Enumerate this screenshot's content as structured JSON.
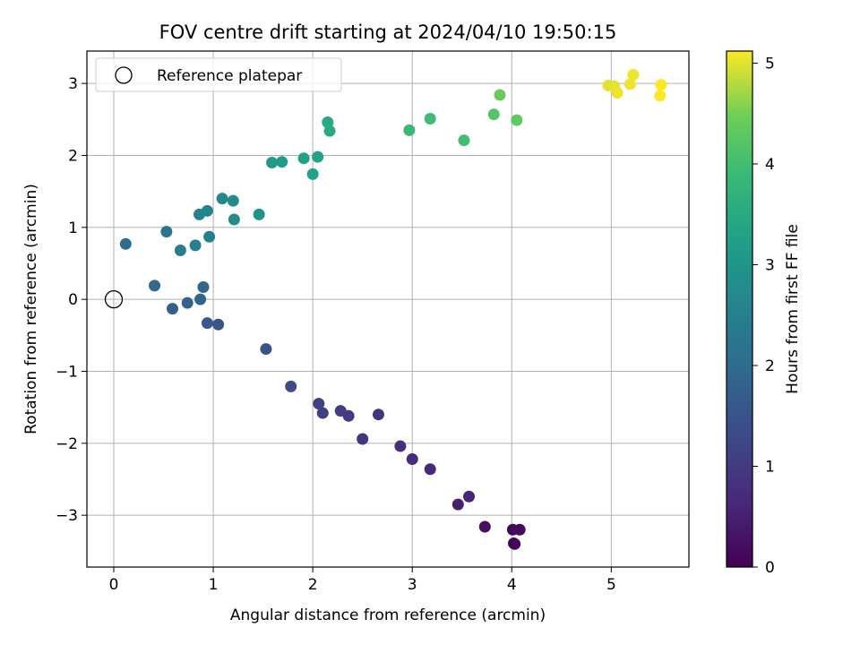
{
  "chart_data": {
    "type": "scatter",
    "title": "FOV centre drift starting at 2024/04/10 19:50:15",
    "xlabel": "Angular distance from reference (arcmin)",
    "ylabel": "Rotation from reference (arcmin)",
    "xlim": [
      -0.27,
      5.78
    ],
    "ylim": [
      -3.72,
      3.45
    ],
    "x_ticks": [
      0,
      1,
      2,
      3,
      4,
      5
    ],
    "y_ticks": [
      -3,
      -2,
      -1,
      0,
      1,
      2,
      3
    ],
    "x_tick_labels": [
      "0",
      "1",
      "2",
      "3",
      "4",
      "5"
    ],
    "y_tick_labels": [
      "−3",
      "−2",
      "−1",
      "0",
      "1",
      "2",
      "3"
    ],
    "grid": true,
    "legend": {
      "position": "top-left",
      "label": "Reference platepar"
    },
    "reference_point": {
      "x": 0,
      "y": 0
    },
    "colormap": "viridis",
    "colorbar": {
      "label": "Hours from first FF file",
      "range": [
        0,
        5.12
      ],
      "ticks": [
        0,
        1,
        2,
        3,
        4,
        5
      ],
      "tick_labels": [
        "0",
        "1",
        "2",
        "3",
        "4",
        "5"
      ]
    },
    "points": [
      {
        "x": 4.02,
        "y": -3.39,
        "c": 0.0
      },
      {
        "x": 4.03,
        "y": -3.4,
        "c": 0.05
      },
      {
        "x": 4.01,
        "y": -3.2,
        "c": 0.1
      },
      {
        "x": 4.08,
        "y": -3.2,
        "c": 0.15
      },
      {
        "x": 3.73,
        "y": -3.16,
        "c": 0.25
      },
      {
        "x": 3.46,
        "y": -2.85,
        "c": 0.5
      },
      {
        "x": 3.57,
        "y": -2.74,
        "c": 0.6
      },
      {
        "x": 3.18,
        "y": -2.36,
        "c": 0.7
      },
      {
        "x": 3.0,
        "y": -2.22,
        "c": 0.75
      },
      {
        "x": 2.88,
        "y": -2.04,
        "c": 0.8
      },
      {
        "x": 2.5,
        "y": -1.94,
        "c": 0.9
      },
      {
        "x": 2.66,
        "y": -1.6,
        "c": 0.95
      },
      {
        "x": 2.36,
        "y": -1.62,
        "c": 1.0
      },
      {
        "x": 2.28,
        "y": -1.55,
        "c": 1.05
      },
      {
        "x": 2.1,
        "y": -1.58,
        "c": 1.1
      },
      {
        "x": 2.06,
        "y": -1.45,
        "c": 1.15
      },
      {
        "x": 1.78,
        "y": -1.21,
        "c": 1.3
      },
      {
        "x": 1.53,
        "y": -0.69,
        "c": 1.45
      },
      {
        "x": 1.05,
        "y": -0.35,
        "c": 1.55
      },
      {
        "x": 0.94,
        "y": -0.33,
        "c": 1.6
      },
      {
        "x": 0.59,
        "y": -0.13,
        "c": 1.75
      },
      {
        "x": 0.74,
        "y": -0.05,
        "c": 1.8
      },
      {
        "x": 0.87,
        "y": 0.0,
        "c": 1.85
      },
      {
        "x": 0.9,
        "y": 0.17,
        "c": 1.9
      },
      {
        "x": 0.41,
        "y": 0.19,
        "c": 1.95
      },
      {
        "x": 0.12,
        "y": 0.77,
        "c": 2.05
      },
      {
        "x": 0.53,
        "y": 0.94,
        "c": 2.25
      },
      {
        "x": 0.67,
        "y": 0.68,
        "c": 2.4
      },
      {
        "x": 0.82,
        "y": 0.75,
        "c": 2.45
      },
      {
        "x": 0.96,
        "y": 0.87,
        "c": 2.5
      },
      {
        "x": 0.86,
        "y": 1.18,
        "c": 2.55
      },
      {
        "x": 0.94,
        "y": 1.23,
        "c": 2.6
      },
      {
        "x": 1.09,
        "y": 1.4,
        "c": 2.7
      },
      {
        "x": 1.2,
        "y": 1.37,
        "c": 2.75
      },
      {
        "x": 1.21,
        "y": 1.11,
        "c": 2.8
      },
      {
        "x": 1.46,
        "y": 1.18,
        "c": 2.95
      },
      {
        "x": 1.59,
        "y": 1.9,
        "c": 3.1
      },
      {
        "x": 1.69,
        "y": 1.91,
        "c": 3.15
      },
      {
        "x": 1.91,
        "y": 1.96,
        "c": 3.25
      },
      {
        "x": 2.0,
        "y": 1.74,
        "c": 3.3
      },
      {
        "x": 2.05,
        "y": 1.98,
        "c": 3.35
      },
      {
        "x": 2.15,
        "y": 2.46,
        "c": 3.45
      },
      {
        "x": 2.17,
        "y": 2.34,
        "c": 3.5
      },
      {
        "x": 2.97,
        "y": 2.35,
        "c": 3.9
      },
      {
        "x": 3.18,
        "y": 2.51,
        "c": 3.95
      },
      {
        "x": 3.52,
        "y": 2.21,
        "c": 4.0
      },
      {
        "x": 3.82,
        "y": 2.57,
        "c": 4.2
      },
      {
        "x": 3.88,
        "y": 2.84,
        "c": 4.4
      },
      {
        "x": 4.05,
        "y": 2.49,
        "c": 4.3
      },
      {
        "x": 4.97,
        "y": 2.97,
        "c": 5.0
      },
      {
        "x": 5.03,
        "y": 2.96,
        "c": 5.0
      },
      {
        "x": 5.06,
        "y": 2.87,
        "c": 5.05
      },
      {
        "x": 5.19,
        "y": 2.99,
        "c": 5.05
      },
      {
        "x": 5.22,
        "y": 3.12,
        "c": 5.05
      },
      {
        "x": 5.5,
        "y": 2.98,
        "c": 5.12
      },
      {
        "x": 5.49,
        "y": 2.83,
        "c": 5.12
      }
    ]
  }
}
